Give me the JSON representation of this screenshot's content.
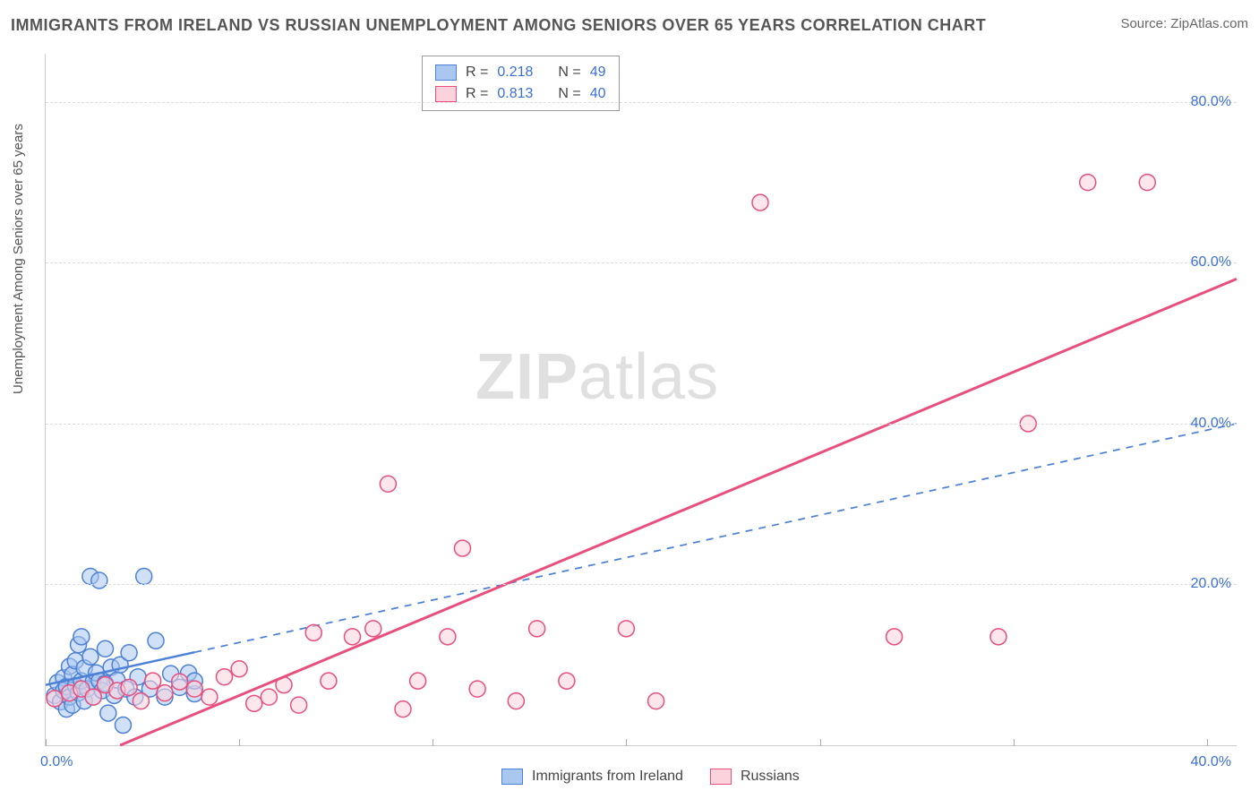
{
  "title": "IMMIGRANTS FROM IRELAND VS RUSSIAN UNEMPLOYMENT AMONG SENIORS OVER 65 YEARS CORRELATION CHART",
  "source": "Source: ZipAtlas.com",
  "watermark": {
    "bold": "ZIP",
    "rest": "atlas"
  },
  "y_axis_label": "Unemployment Among Seniors over 65 years",
  "colors": {
    "blue_fill": "#a9c7ef",
    "blue_stroke": "#4d81d6",
    "pink_fill": "#fcd3dc",
    "pink_stroke": "#e84f7d",
    "axis_text": "#3b6fd6",
    "title_text": "#555555",
    "grid": "#dddddd",
    "axis_line": "#cccccc"
  },
  "chart": {
    "type": "scatter",
    "xlim": [
      0,
      40
    ],
    "ylim": [
      0,
      86
    ],
    "x_min_label": "0.0%",
    "x_max_label": "40.0%",
    "x_ticks_at": [
      0,
      6.5,
      13,
      19.5,
      26,
      32.5,
      39
    ],
    "y_ticks": [
      {
        "v": 20,
        "label": "20.0%"
      },
      {
        "v": 40,
        "label": "40.0%"
      },
      {
        "v": 60,
        "label": "60.0%"
      },
      {
        "v": 80,
        "label": "80.0%"
      }
    ],
    "marker_radius": 9,
    "marker_stroke_width": 1.5,
    "marker_fill_opacity": 0.55,
    "series": [
      {
        "name": "Immigrants from Ireland",
        "color_key": "blue",
        "regression": {
          "x1": 0,
          "y1": 7.5,
          "x2": 40,
          "y2": 40,
          "solid_until_x": 5,
          "width": 2.5
        },
        "stats": {
          "R": "0.218",
          "N": "49"
        },
        "points": [
          [
            0.3,
            6.2
          ],
          [
            0.4,
            7.8
          ],
          [
            0.5,
            5.4
          ],
          [
            0.6,
            8.4
          ],
          [
            0.6,
            6.8
          ],
          [
            0.7,
            7.3
          ],
          [
            0.7,
            4.5
          ],
          [
            0.8,
            9.8
          ],
          [
            0.8,
            6.0
          ],
          [
            0.9,
            8.8
          ],
          [
            0.9,
            5.0
          ],
          [
            1.0,
            7.4
          ],
          [
            1.0,
            10.5
          ],
          [
            1.1,
            12.5
          ],
          [
            1.1,
            6.5
          ],
          [
            1.2,
            8.0
          ],
          [
            1.2,
            13.5
          ],
          [
            1.3,
            5.5
          ],
          [
            1.3,
            9.6
          ],
          [
            1.4,
            7.0
          ],
          [
            1.5,
            11.0
          ],
          [
            1.5,
            21.0
          ],
          [
            1.6,
            6.0
          ],
          [
            1.6,
            7.9
          ],
          [
            1.7,
            9.0
          ],
          [
            1.8,
            20.5
          ],
          [
            1.8,
            8.0
          ],
          [
            1.9,
            6.8
          ],
          [
            2.0,
            12.0
          ],
          [
            2.0,
            7.7
          ],
          [
            2.1,
            4.0
          ],
          [
            2.2,
            9.7
          ],
          [
            2.3,
            6.2
          ],
          [
            2.4,
            8.1
          ],
          [
            2.5,
            10.0
          ],
          [
            2.6,
            2.5
          ],
          [
            2.7,
            7.0
          ],
          [
            2.8,
            11.5
          ],
          [
            3.0,
            6.0
          ],
          [
            3.1,
            8.5
          ],
          [
            3.3,
            21.0
          ],
          [
            3.5,
            7.0
          ],
          [
            3.7,
            13.0
          ],
          [
            4.0,
            6.0
          ],
          [
            4.2,
            8.9
          ],
          [
            4.5,
            7.2
          ],
          [
            4.8,
            9.0
          ],
          [
            5.0,
            6.4
          ],
          [
            5.0,
            8.0
          ]
        ]
      },
      {
        "name": "Russians",
        "color_key": "pink",
        "regression": {
          "x1": 2.5,
          "y1": 0,
          "x2": 40,
          "y2": 58,
          "solid_until_x": 40,
          "width": 3
        },
        "stats": {
          "R": "0.813",
          "N": "40"
        },
        "points": [
          [
            0.3,
            5.8
          ],
          [
            0.8,
            6.5
          ],
          [
            1.2,
            7.0
          ],
          [
            1.6,
            6.0
          ],
          [
            2.0,
            7.5
          ],
          [
            2.4,
            6.8
          ],
          [
            2.8,
            7.2
          ],
          [
            3.2,
            5.5
          ],
          [
            3.6,
            8.0
          ],
          [
            4.0,
            6.5
          ],
          [
            4.5,
            7.9
          ],
          [
            5.0,
            7.0
          ],
          [
            5.5,
            6.0
          ],
          [
            6.0,
            8.5
          ],
          [
            6.5,
            9.5
          ],
          [
            7.0,
            5.2
          ],
          [
            7.5,
            6.0
          ],
          [
            8.0,
            7.5
          ],
          [
            8.5,
            5.0
          ],
          [
            9.0,
            14.0
          ],
          [
            9.5,
            8.0
          ],
          [
            10.3,
            13.5
          ],
          [
            11.0,
            14.5
          ],
          [
            11.5,
            32.5
          ],
          [
            12.0,
            4.5
          ],
          [
            12.5,
            8.0
          ],
          [
            13.5,
            13.5
          ],
          [
            14.0,
            24.5
          ],
          [
            14.5,
            7.0
          ],
          [
            15.8,
            5.5
          ],
          [
            16.5,
            14.5
          ],
          [
            17.5,
            8.0
          ],
          [
            19.5,
            14.5
          ],
          [
            20.5,
            5.5
          ],
          [
            24.0,
            67.5
          ],
          [
            28.5,
            13.5
          ],
          [
            32.0,
            13.5
          ],
          [
            33.0,
            40.0
          ],
          [
            35.0,
            70.0
          ],
          [
            37.0,
            70.0
          ]
        ]
      }
    ]
  },
  "legend_top": {
    "R_label": "R =",
    "N_label": "N ="
  },
  "legend_bottom": {
    "items": [
      "Immigrants from Ireland",
      "Russians"
    ]
  }
}
